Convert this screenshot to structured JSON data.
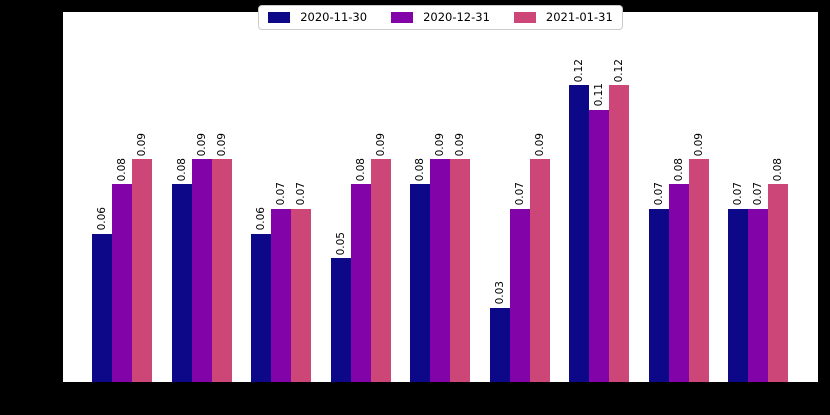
{
  "figure": {
    "background": "#000000",
    "plot_background": "#ffffff"
  },
  "chart_data": {
    "type": "bar",
    "title": "",
    "xlabel": "",
    "ylabel": "",
    "categories": [
      "",
      "",
      "",
      "",
      "",
      "",
      "",
      "",
      ""
    ],
    "series": [
      {
        "name": "2020-11-30",
        "color": "#0d0887",
        "values": [
          0.06,
          0.08,
          0.06,
          0.05,
          0.08,
          0.03,
          0.12,
          0.07,
          0.07
        ],
        "labels": [
          "0.06",
          "0.08",
          "0.06",
          "0.05",
          "0.08",
          "0.03",
          "0.12",
          "0.07",
          "0.07"
        ]
      },
      {
        "name": "2020-12-31",
        "color": "#8204a8",
        "values": [
          0.08,
          0.09,
          0.07,
          0.08,
          0.09,
          0.07,
          0.11,
          0.08,
          0.07
        ],
        "labels": [
          "0.08",
          "0.09",
          "0.07",
          "0.08",
          "0.09",
          "0.07",
          "0.11",
          "0.08",
          "0.07"
        ]
      },
      {
        "name": "2021-01-31",
        "color": "#cc4778",
        "values": [
          0.09,
          0.09,
          0.07,
          0.09,
          0.09,
          0.09,
          0.12,
          0.09,
          0.08
        ],
        "labels": [
          "0.09",
          "0.09",
          "0.07",
          "0.09",
          "0.09",
          "0.09",
          "0.12",
          "0.09",
          "0.08"
        ]
      }
    ],
    "ylim": [
      0,
      0.1495
    ],
    "grid": false,
    "legend_position": "upper center",
    "bar_value_labels": {
      "visible": true,
      "rotation_degrees": 90,
      "decimals": 2
    }
  }
}
